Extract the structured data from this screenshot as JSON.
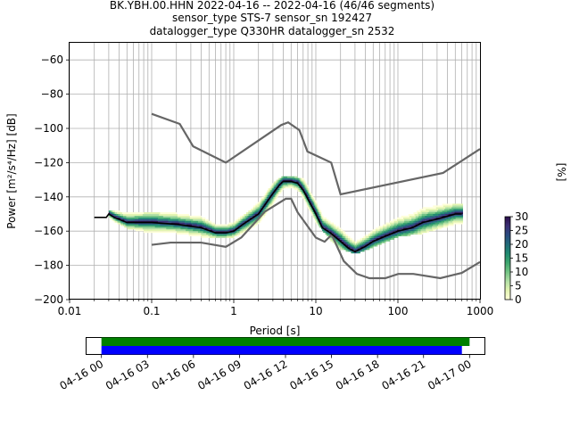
{
  "title": {
    "line1": "BK.YBH.00.HHN   2022-04-16 -- 2022-04-16  (46/46 segments)",
    "line2": "sensor_type STS-7 sensor_sn 192427",
    "line3": "datalogger_type Q330HR datalogger_sn 2532"
  },
  "chart_data": [
    {
      "type": "heatmap",
      "xlabel": "Period [s]",
      "ylabel": "Power [m²/s⁴/Hz] [dB]",
      "x_scale": "log",
      "xlim": [
        0.01,
        1000
      ],
      "ylim": [
        -200,
        -50
      ],
      "x_ticks": [
        {
          "v": 0.01,
          "label": "0.01"
        },
        {
          "v": 0.1,
          "label": "0.1"
        },
        {
          "v": 1,
          "label": "1"
        },
        {
          "v": 10,
          "label": "10"
        },
        {
          "v": 100,
          "label": "100"
        },
        {
          "v": 1000,
          "label": "1000"
        }
      ],
      "y_ticks": [
        {
          "v": -60,
          "label": "−60"
        },
        {
          "v": -80,
          "label": "−80"
        },
        {
          "v": -100,
          "label": "−100"
        },
        {
          "v": -120,
          "label": "−120"
        },
        {
          "v": -140,
          "label": "−140"
        },
        {
          "v": -160,
          "label": "−160"
        },
        {
          "v": -180,
          "label": "−180"
        },
        {
          "v": -200,
          "label": "−200"
        }
      ],
      "grid": true,
      "colors": {
        "noise_model": "#666666",
        "mode": "#000000",
        "axes": "#000000",
        "grid": "#b0b0b0"
      },
      "noise_models": {
        "high": {
          "x": [
            0.1,
            0.22,
            0.32,
            0.8,
            3.8,
            4.6,
            6.3,
            7.9,
            15.4,
            20,
            354.8,
            1000
          ],
          "y": [
            -91.5,
            -97.4,
            -110.5,
            -120,
            -98,
            -96.5,
            -101,
            -113.5,
            -120,
            -138.5,
            -126,
            -112
          ]
        },
        "low": {
          "x": [
            0.1,
            0.17,
            0.4,
            0.8,
            1.24,
            2.4,
            4.3,
            5,
            6,
            10,
            12.8,
            15.6,
            21.9,
            31.6,
            45,
            70,
            101,
            154,
            328,
            600,
            1000
          ],
          "y": [
            -168,
            -166.7,
            -166.7,
            -169.2,
            -163.7,
            -148.6,
            -141.1,
            -141.1,
            -149,
            -163.8,
            -166.2,
            -162.1,
            -177.5,
            -185,
            -187.5,
            -187.5,
            -185,
            -185,
            -187.5,
            -184.4,
            -178
          ]
        }
      },
      "mode": {
        "x": [
          0.02,
          0.028,
          0.03,
          0.035,
          0.05,
          0.1,
          0.2,
          0.4,
          0.6,
          0.8,
          1,
          1.3,
          2,
          3,
          3.6,
          4,
          5,
          6,
          7,
          10,
          12,
          15,
          20,
          25,
          30,
          40,
          50,
          70,
          100,
          150,
          200,
          300,
          500,
          600
        ],
        "y": [
          -152,
          -152,
          -150,
          -152,
          -155,
          -155,
          -156,
          -158,
          -161,
          -161,
          -160,
          -156,
          -150,
          -138,
          -133,
          -131,
          -131,
          -132,
          -136,
          -150,
          -158,
          -161,
          -166,
          -170,
          -172,
          -169,
          -166,
          -163,
          -160,
          -158,
          -155,
          -153,
          -150,
          -150
        ]
      },
      "density_spread": {
        "x": [
          0.03,
          0.05,
          0.1,
          0.2,
          0.4,
          0.6,
          0.8,
          1,
          1.5,
          2,
          3,
          4,
          5,
          7,
          10,
          15,
          20,
          30,
          50,
          100,
          200,
          400,
          600
        ],
        "lower": [
          -153,
          -158,
          -161,
          -161,
          -163,
          -164,
          -164,
          -163,
          -160,
          -155,
          -144,
          -137,
          -135,
          -141,
          -155,
          -165,
          -170,
          -173,
          -169,
          -163,
          -161,
          -157,
          -155
        ],
        "upper": [
          -149,
          -150,
          -150,
          -151,
          -153,
          -157,
          -157,
          -155,
          -150,
          -144,
          -133,
          -129,
          -129,
          -131,
          -144,
          -155,
          -158,
          -164,
          -158,
          -150,
          -147,
          -145,
          -145
        ]
      }
    },
    {
      "type": "heatmap",
      "title": "",
      "colorbar_label": "[%]",
      "range": [
        0,
        30
      ],
      "ticks": [
        {
          "v": 0,
          "label": "0"
        },
        {
          "v": 5,
          "label": "5"
        },
        {
          "v": 10,
          "label": "10"
        },
        {
          "v": 15,
          "label": "15"
        },
        {
          "v": 20,
          "label": "20"
        },
        {
          "v": 25,
          "label": "25"
        },
        {
          "v": 30,
          "label": "30"
        }
      ],
      "colormap": [
        "#ffffd9",
        "#e3f4b1",
        "#b1dfa5",
        "#73c484",
        "#3ea66e",
        "#1f8a70",
        "#236b7a",
        "#2a4b80",
        "#3b2f74",
        "#2b0e4a"
      ]
    },
    {
      "type": "bar",
      "title": "",
      "xlim_hours": [
        -1,
        25
      ],
      "series": [
        {
          "color": "#008000",
          "start_h": 0,
          "end_h": 24
        },
        {
          "color": "#0000ff",
          "start_h": 0,
          "end_h": 23.5
        }
      ],
      "x_ticks": [
        {
          "h": 0,
          "label": "04-16 00"
        },
        {
          "h": 3,
          "label": "04-16 03"
        },
        {
          "h": 6,
          "label": "04-16 06"
        },
        {
          "h": 9,
          "label": "04-16 09"
        },
        {
          "h": 12,
          "label": "04-16 12"
        },
        {
          "h": 15,
          "label": "04-16 15"
        },
        {
          "h": 18,
          "label": "04-16 18"
        },
        {
          "h": 21,
          "label": "04-16 21"
        },
        {
          "h": 24,
          "label": "04-17 00"
        }
      ]
    }
  ]
}
